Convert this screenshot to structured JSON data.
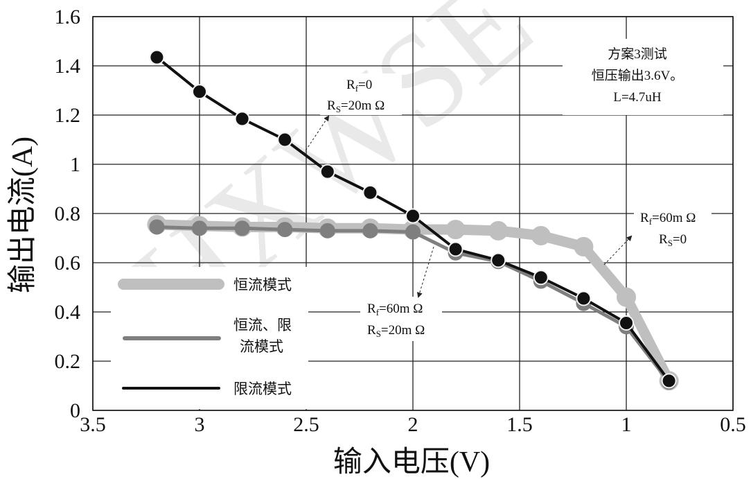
{
  "chart_data": {
    "type": "line",
    "xlabel": "输入电压(V)",
    "ylabel": "输出电流(A)",
    "xlim": [
      3.5,
      0.5
    ],
    "ylim": [
      0,
      1.6
    ],
    "x_reversed": true,
    "grid": true,
    "x_ticks": [
      "3.5",
      "3",
      "2.5",
      "2",
      "1.5",
      "1",
      "0.5"
    ],
    "y_ticks": [
      "0",
      "0.2",
      "0.4",
      "0.6",
      "0.8",
      "1",
      "1.2",
      "1.4",
      "1.6"
    ],
    "legend_position": "lower-left",
    "series": [
      {
        "name": "恒流模式",
        "color": "#bfbfbf",
        "x": [
          3.2,
          3.0,
          2.8,
          2.6,
          2.4,
          2.2,
          2.0,
          1.8,
          1.6,
          1.4,
          1.2,
          1.0,
          0.8
        ],
        "y": [
          0.755,
          0.75,
          0.745,
          0.745,
          0.74,
          0.74,
          0.735,
          0.735,
          0.73,
          0.71,
          0.665,
          0.46,
          0.12
        ]
      },
      {
        "name": "恒流、限流模式",
        "color": "#7f7f7f",
        "x": [
          3.2,
          3.0,
          2.8,
          2.6,
          2.4,
          2.2,
          2.0,
          1.8,
          1.6,
          1.4,
          1.2,
          1.0,
          0.8
        ],
        "y": [
          0.745,
          0.74,
          0.74,
          0.735,
          0.73,
          0.73,
          0.725,
          0.64,
          0.605,
          0.525,
          0.435,
          0.34,
          0.115
        ]
      },
      {
        "name": "限流模式",
        "color": "#111111",
        "x": [
          3.2,
          3.0,
          2.8,
          2.6,
          2.4,
          2.2,
          2.0,
          1.8,
          1.6,
          1.4,
          1.2,
          1.0,
          0.8
        ],
        "y": [
          1.435,
          1.295,
          1.185,
          1.1,
          0.97,
          0.885,
          0.79,
          0.655,
          0.61,
          0.54,
          0.455,
          0.355,
          0.12
        ]
      }
    ],
    "legend": {
      "item1": "恒流模式",
      "item2_line1": "恒流、限",
      "item2_line2": "流模式",
      "item3": "限流模式"
    },
    "annotations": {
      "info": [
        "方案3测试",
        "恒压输出3.6V。",
        "L=4.7uH"
      ],
      "label_a": {
        "r1": "R",
        "r1_sub": "f",
        "r1_val": "=0",
        "r2": "R",
        "r2_sub": "S",
        "r2_val": "=20m Ω"
      },
      "label_b": {
        "r1": "R",
        "r1_sub": "f",
        "r1_val": "=60m Ω",
        "r2": "R",
        "r2_sub": "S",
        "r2_val": "=0"
      },
      "label_c": {
        "r1": "R",
        "r1_sub": "f",
        "r1_val": "=60m Ω",
        "r2": "R",
        "r2_sub": "S",
        "r2_val": "=20m Ω"
      }
    },
    "watermark": "HXWSE"
  }
}
